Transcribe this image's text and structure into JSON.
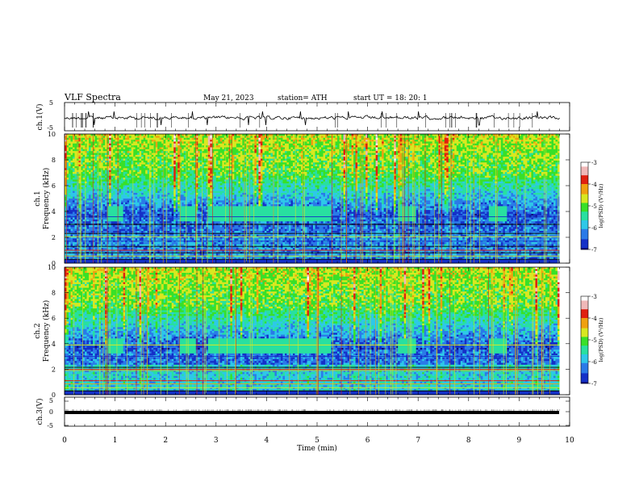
{
  "header": {
    "title": "VLF  Spectra",
    "date": "May 21, 2023",
    "station": "station= ATH",
    "start_ut": "start  UT  =    18: 20: 1"
  },
  "chart_data": [
    {
      "type": "line",
      "panel": "ch1-waveform",
      "ylabel": "ch.1(V)",
      "ylim": [
        -5,
        5
      ],
      "yticks": [
        "5",
        "-5"
      ],
      "xlim": [
        0,
        10
      ],
      "series": [
        {
          "values_approx": "noisy trace around 0 V with occasional spikes"
        }
      ]
    },
    {
      "type": "heatmap",
      "panel": "ch1-spectrogram",
      "ylabel": "ch.1\nFrequency  (kHz)",
      "ylim": [
        0,
        10
      ],
      "yticks": [
        "0",
        "2",
        "4",
        "6",
        "8",
        "10"
      ],
      "xlim": [
        0,
        10
      ],
      "colorbar": {
        "label": "log(PSD) (V²/Hz)",
        "range": [
          -7,
          -3
        ],
        "ticks": [
          "-3",
          "-4",
          "-5",
          "-6",
          "-7"
        ]
      },
      "bursts_at_4kHz_min": [
        [
          0.85,
          1.15
        ],
        [
          2.3,
          2.6
        ],
        [
          2.85,
          5.3
        ],
        [
          6.6,
          6.95
        ],
        [
          8.4,
          8.75
        ]
      ]
    },
    {
      "type": "heatmap",
      "panel": "ch2-spectrogram",
      "ylabel": "ch.2\nFrequency  (kHz)",
      "ylim": [
        0,
        10
      ],
      "yticks": [
        "0",
        "2",
        "4",
        "6",
        "8",
        "10"
      ],
      "xlim": [
        0,
        10
      ],
      "colorbar": {
        "label": "log(PSD) (V²/Hz)",
        "range": [
          -7,
          -3
        ],
        "ticks": [
          "-3",
          "-4",
          "-5",
          "-6",
          "-7"
        ]
      },
      "bursts_at_4kHz_min": [
        [
          0.85,
          1.15
        ],
        [
          2.3,
          2.6
        ],
        [
          2.85,
          5.3
        ],
        [
          6.6,
          6.95
        ],
        [
          8.4,
          8.75
        ]
      ]
    },
    {
      "type": "line",
      "panel": "ch3-waveform",
      "ylabel": "ch.3(V)",
      "ylim": [
        -5,
        5
      ],
      "yticks": [
        "5",
        "0",
        "-5"
      ],
      "xlim": [
        0,
        10
      ],
      "series": [
        {
          "constant_value": -1.5
        }
      ]
    }
  ],
  "x_axis": {
    "label": "Time  (min)",
    "ticks": [
      "0",
      "1",
      "2",
      "3",
      "4",
      "5",
      "6",
      "7",
      "8",
      "9",
      "10"
    ]
  },
  "colors": {
    "spec_scale": [
      "#0a0a7a",
      "#1530c8",
      "#2a7ae8",
      "#2ec8e8",
      "#28e0a0",
      "#38e028",
      "#d8e820",
      "#f0a010",
      "#e02010",
      "#f0b8b8",
      "#ffffff"
    ]
  }
}
